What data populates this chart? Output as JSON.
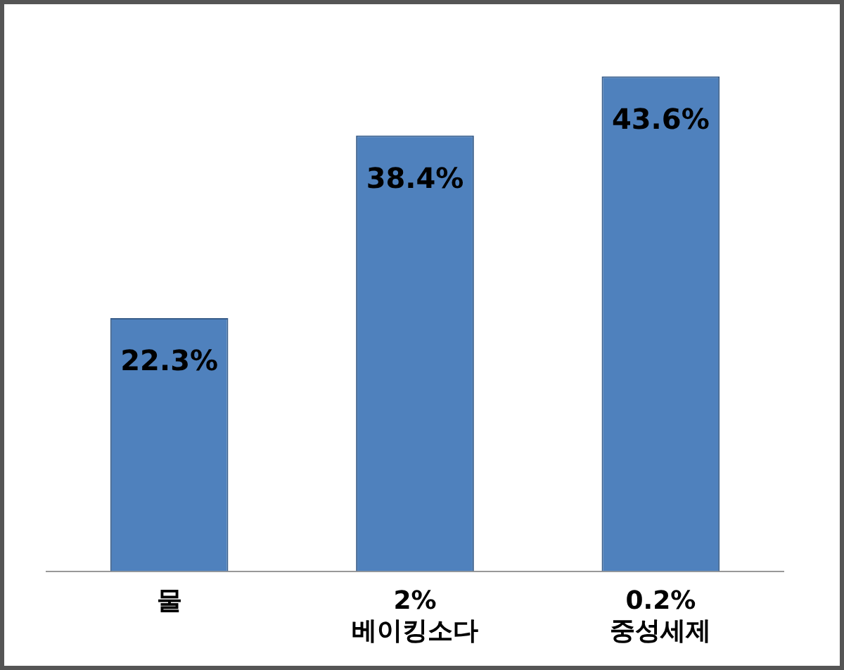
{
  "chart_data": {
    "type": "bar",
    "categories": [
      "물",
      "2%\n베이킹소다",
      "0.2%\n중성세제"
    ],
    "values": [
      22.3,
      38.4,
      43.6
    ],
    "color": "#4f81bd",
    "value_labels": [
      "22.3%",
      "38.4%",
      "43.6%"
    ],
    "grid": false,
    "legend": false
  }
}
